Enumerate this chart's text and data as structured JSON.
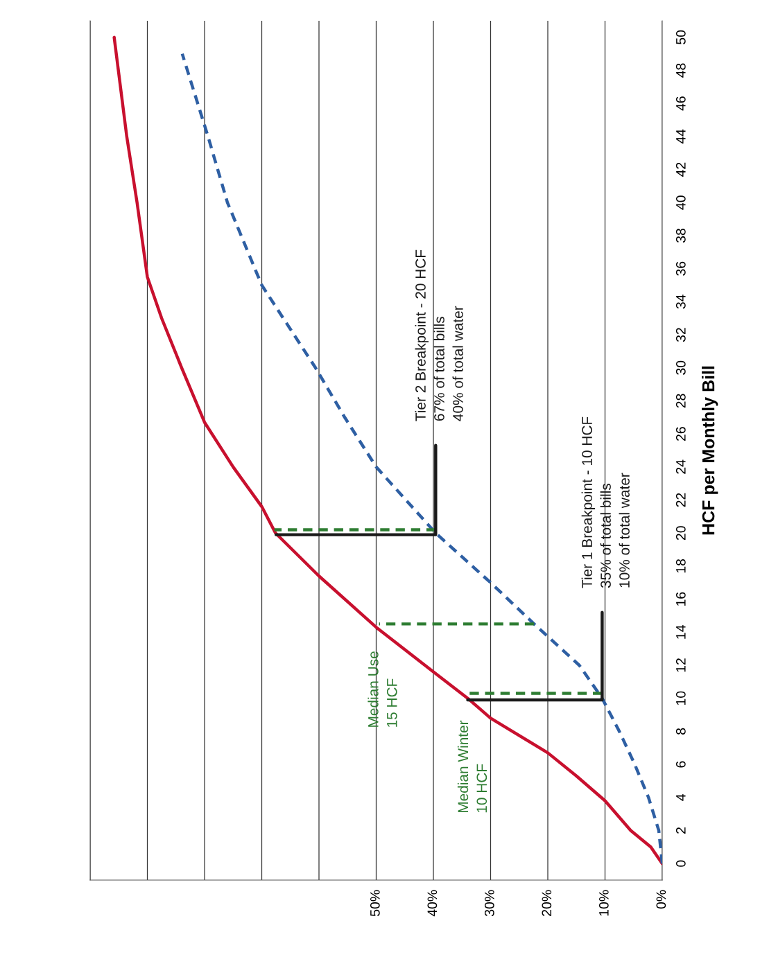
{
  "chart_data": {
    "type": "line",
    "ylabel": "HCF per Monthly Bill",
    "xlim": [
      100,
      0
    ],
    "xticks": [
      {
        "value": 0,
        "label": "0%"
      },
      {
        "value": 10,
        "label": "10%"
      },
      {
        "value": 20,
        "label": "20%"
      },
      {
        "value": 30,
        "label": "30%"
      },
      {
        "value": 40,
        "label": "40%"
      },
      {
        "value": 50,
        "label": "50%"
      },
      {
        "value": 60,
        "label": null
      },
      {
        "value": 70,
        "label": null
      },
      {
        "value": 80,
        "label": null
      },
      {
        "value": 90,
        "label": null
      },
      {
        "value": 100,
        "label": null
      }
    ],
    "ylim": [
      -1,
      51
    ],
    "yticks": [
      0,
      2,
      4,
      6,
      8,
      10,
      12,
      14,
      16,
      18,
      20,
      22,
      24,
      26,
      28,
      30,
      32,
      34,
      36,
      38,
      40,
      42,
      44,
      46,
      48,
      50
    ],
    "grid": "x",
    "marker": "none",
    "series": [
      {
        "color": "#c8102e",
        "line_style": "solid",
        "x": [
          0,
          1,
          2,
          5.5,
          10,
          15,
          20,
          30,
          34,
          40,
          50,
          60,
          67.6,
          70,
          75,
          80,
          84,
          87.5,
          90,
          91.8,
          93.6,
          95.8
        ],
        "values": [
          0,
          0.5,
          1,
          2,
          3.8,
          5.3,
          6.7,
          8.8,
          10,
          11.6,
          14.3,
          17.4,
          20,
          21.6,
          24,
          26.7,
          30,
          33,
          35.5,
          40,
          44,
          50
        ]
      },
      {
        "color": "#2e5fa3",
        "line_style": "dashed",
        "x": [
          0,
          0.6,
          2.4,
          4.8,
          7.5,
          10.5,
          14.5,
          22.4,
          30,
          39.6,
          50,
          55.5,
          60.6,
          70,
          76,
          79.4,
          83.9
        ],
        "values": [
          0,
          2,
          4,
          6,
          8,
          10,
          12,
          14.5,
          17,
          20,
          24,
          27,
          30,
          35,
          40,
          44,
          49
        ]
      },
      {
        "color": "#2e7d32",
        "line_style": "dashed",
        "x": [
          10.5,
          33.8
        ],
        "values": [
          10.3,
          10.3
        ]
      },
      {
        "color": "#2e7d32",
        "line_style": "dashed",
        "x": [
          22.4,
          49.5
        ],
        "values": [
          14.5,
          14.5
        ]
      },
      {
        "color": "#2e7d32",
        "line_style": "dashed",
        "x": [
          39.6,
          67.8
        ],
        "values": [
          20.2,
          20.2
        ]
      },
      {
        "color": "#1a1a1a",
        "line_style": "solid",
        "x": [
          34,
          10.5,
          10.5
        ],
        "values": [
          9.9,
          9.9,
          15.2
        ]
      },
      {
        "color": "#1a1a1a",
        "line_style": "solid",
        "x": [
          67.5,
          39.6,
          39.6
        ],
        "values": [
          19.9,
          19.9,
          25.3
        ]
      }
    ],
    "annotations": [
      {
        "text": "Tier 1 Breakpoint - 10 HCF\n35% of total bills\n10% of total water",
        "x": 10.5,
        "y": 15.2
      },
      {
        "text": "Tier 2 Breakpoint - 20 HCF\n67% of total bills\n40% of total water",
        "x": 39.6,
        "y": 25.3
      },
      {
        "text": "Median Use\n15 HCF",
        "x": 49.5,
        "y": 14.5
      },
      {
        "text": "Median Winter\n10 HCF",
        "x": 33.8,
        "y": 10.3
      }
    ]
  }
}
